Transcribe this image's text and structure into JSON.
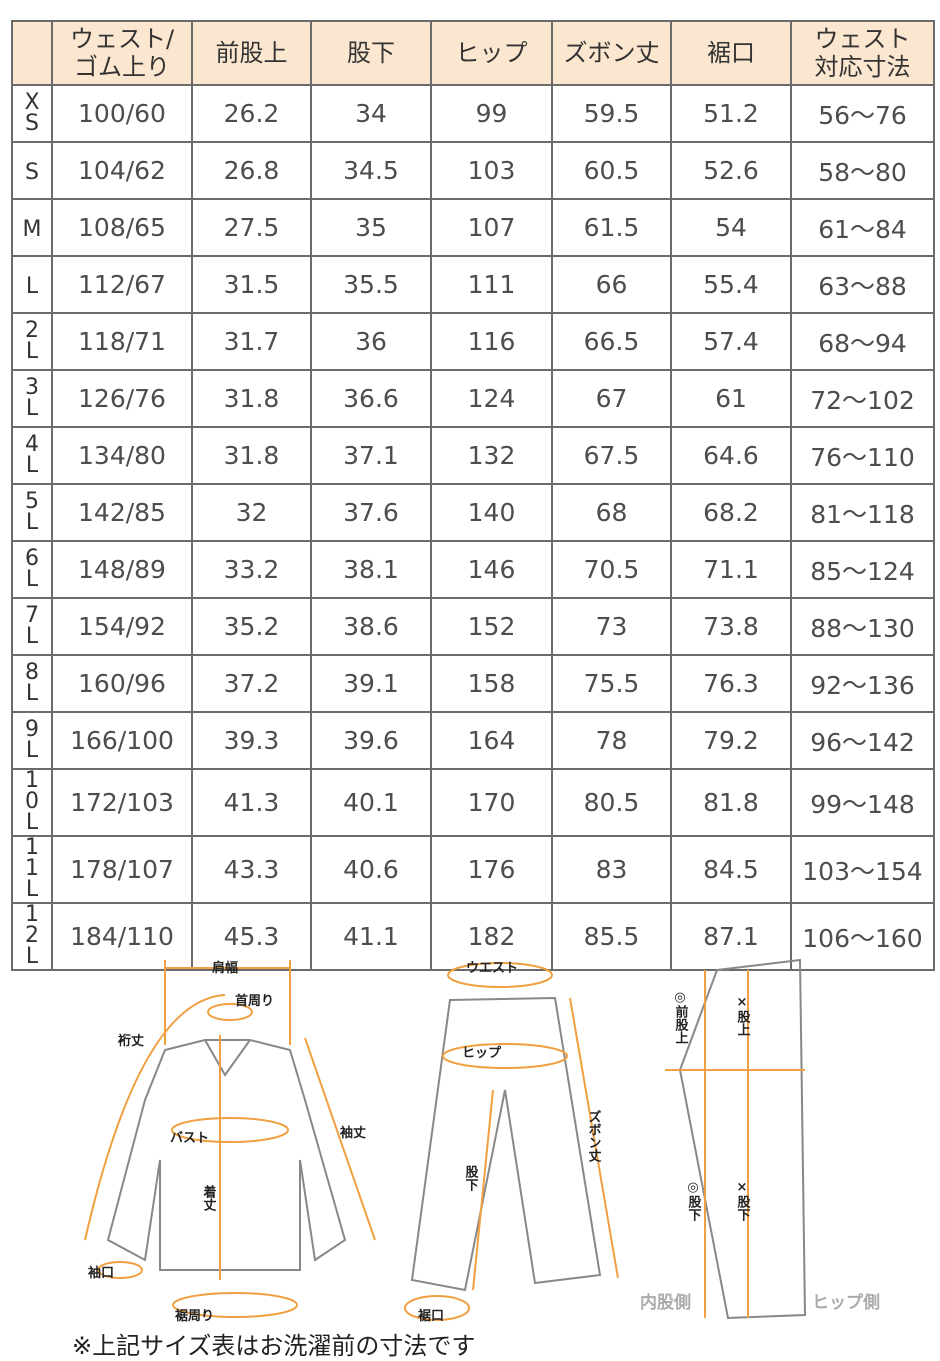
{
  "table": {
    "headers": [
      "",
      "ウェスト/ゴム上り",
      "前股上",
      "股下",
      "ヒップ",
      "ズボン丈",
      "裾口",
      "ウェスト対応寸法"
    ],
    "rows": [
      [
        "XS",
        "100/60",
        "26.2",
        "34",
        "99",
        "59.5",
        "51.2",
        "56～76"
      ],
      [
        "S",
        "104/62",
        "26.8",
        "34.5",
        "103",
        "60.5",
        "52.6",
        "58～80"
      ],
      [
        "M",
        "108/65",
        "27.5",
        "35",
        "107",
        "61.5",
        "54",
        "61～84"
      ],
      [
        "L",
        "112/67",
        "31.5",
        "35.5",
        "111",
        "66",
        "55.4",
        "63～88"
      ],
      [
        "2L",
        "118/71",
        "31.7",
        "36",
        "116",
        "66.5",
        "57.4",
        "68～94"
      ],
      [
        "3L",
        "126/76",
        "31.8",
        "36.6",
        "124",
        "67",
        "61",
        "72～102"
      ],
      [
        "4L",
        "134/80",
        "31.8",
        "37.1",
        "132",
        "67.5",
        "64.6",
        "76～110"
      ],
      [
        "5L",
        "142/85",
        "32",
        "37.6",
        "140",
        "68",
        "68.2",
        "81～118"
      ],
      [
        "6L",
        "148/89",
        "33.2",
        "38.1",
        "146",
        "70.5",
        "71.1",
        "85～124"
      ],
      [
        "7L",
        "154/92",
        "35.2",
        "38.6",
        "152",
        "73",
        "73.8",
        "88～130"
      ],
      [
        "8L",
        "160/96",
        "37.2",
        "39.1",
        "158",
        "75.5",
        "76.3",
        "92～136"
      ],
      [
        "9L",
        "166/100",
        "39.3",
        "39.6",
        "164",
        "78",
        "79.2",
        "96～142"
      ],
      [
        "10L",
        "172/103",
        "41.3",
        "40.1",
        "170",
        "80.5",
        "81.8",
        "99～148"
      ],
      [
        "11L",
        "178/107",
        "43.3",
        "40.6",
        "176",
        "83",
        "84.5",
        "103～154"
      ],
      [
        "12L",
        "184/110",
        "45.3",
        "41.1",
        "182",
        "85.5",
        "87.1",
        "106～160"
      ]
    ]
  },
  "diagram": {
    "shirt": {
      "shoulder": "肩幅",
      "neck": "首周り",
      "yuki": "裄丈",
      "bust": "バスト",
      "sleeve": "袖丈",
      "length": "着丈",
      "cuff": "袖口",
      "hem": "裾周り"
    },
    "pants": {
      "waist": "ウエスト",
      "hip": "ヒップ",
      "inseam": "股下",
      "length": "ズボン丈",
      "hem": "裾口"
    },
    "side": {
      "front_rise": "◎前股上",
      "rise": "×股上",
      "inseam_o": "◎股下",
      "inseam_x": "×股下",
      "inner": "内股側",
      "hip_side": "ヒップ側"
    },
    "accent_color": "#f0a040"
  },
  "note": "※上記サイズ表はお洗濯前の寸法です"
}
